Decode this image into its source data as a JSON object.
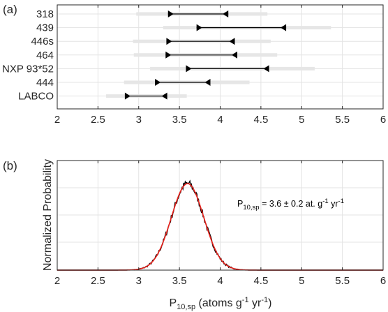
{
  "chart_data": [
    {
      "type": "range",
      "panel_label": "(a)",
      "categories": [
        "318",
        "439",
        "446s",
        "464",
        "NXP 93*52",
        "444",
        "LABCO"
      ],
      "ranges_outer": [
        [
          2.97,
          4.58
        ],
        [
          3.3,
          5.36
        ],
        [
          2.93,
          4.62
        ],
        [
          2.94,
          4.7
        ],
        [
          3.14,
          5.16
        ],
        [
          2.82,
          4.36
        ],
        [
          2.6,
          3.59
        ]
      ],
      "ranges_inner": [
        [
          3.36,
          4.1
        ],
        [
          3.71,
          4.81
        ],
        [
          3.34,
          4.18
        ],
        [
          3.33,
          4.21
        ],
        [
          3.58,
          4.6
        ],
        [
          3.2,
          3.88
        ],
        [
          2.83,
          3.35
        ]
      ],
      "xlim": [
        2,
        6
      ],
      "xticks": [
        2,
        2.5,
        3,
        3.5,
        4,
        4.5,
        5,
        5.5,
        6
      ],
      "xtick_labels": [
        "2",
        "2.5",
        "3",
        "3.5",
        "4",
        "4.5",
        "5",
        "5.5",
        "6"
      ],
      "grid": true,
      "colors": {
        "outer": "#e6e6e6",
        "inner": "#000000"
      }
    },
    {
      "type": "line",
      "panel_label": "(b)",
      "series": [
        {
          "kind": "histogram",
          "color": "#000000"
        },
        {
          "kind": "gaussian-fit",
          "color": "#e8201a"
        }
      ],
      "mean": 3.6,
      "sd": 0.2,
      "xlim": [
        2,
        6
      ],
      "xticks": [
        2,
        2.5,
        3,
        3.5,
        4,
        4.5,
        5,
        5.5,
        6
      ],
      "xtick_labels": [
        "2",
        "2.5",
        "3",
        "3.5",
        "4",
        "4.5",
        "5",
        "5.5",
        "6"
      ],
      "ylabel": "Normalized Probability",
      "xlabel": {
        "main": "P",
        "sub": "10,sp",
        "rest1": " (atoms g",
        "sup1": "-1",
        "rest2": " yr",
        "sup2": "-1",
        "rest3": ")"
      },
      "annotation": {
        "main": "P",
        "sub": "10,sp",
        "rest1": " = 3.6 ± 0.2 at. g",
        "sup1": "-1",
        "rest2": " yr",
        "sup2": "-1"
      },
      "grid": true
    }
  ]
}
